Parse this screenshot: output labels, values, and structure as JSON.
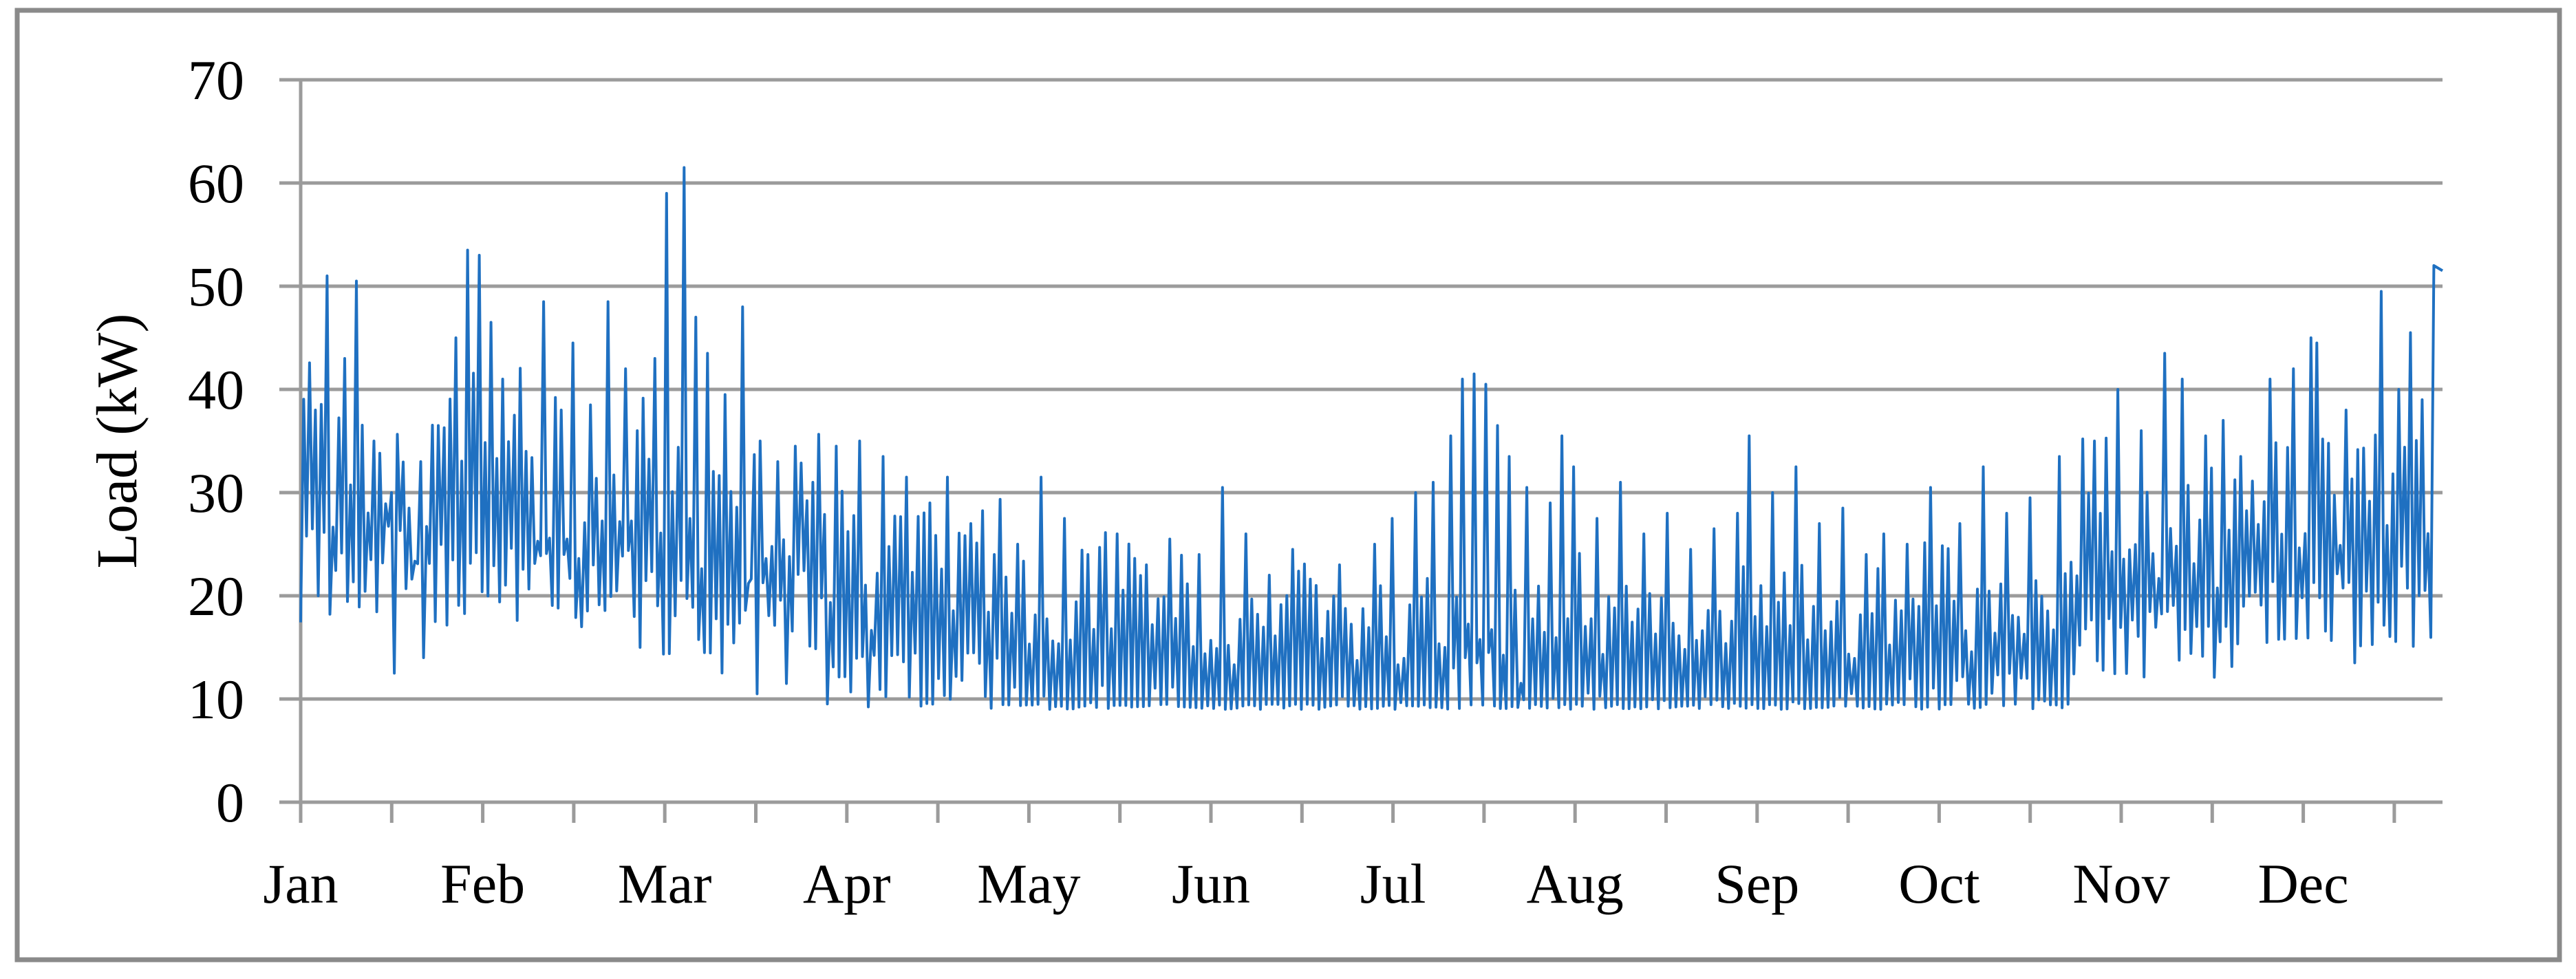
{
  "figure": {
    "border_color": "#8a8a8a",
    "background": "#ffffff"
  },
  "chart_data": {
    "type": "line",
    "title": "",
    "xlabel": "",
    "ylabel": "Load (kW)",
    "ylim": [
      0,
      70
    ],
    "yticks": [
      0,
      10,
      20,
      30,
      40,
      50,
      60,
      70
    ],
    "months": [
      "Jan",
      "Feb",
      "Mar",
      "Apr",
      "May",
      "Jun",
      "Jul",
      "Aug",
      "Sep",
      "Oct",
      "Nov",
      "Dec"
    ],
    "grid": "horizontal",
    "legend": "none",
    "axis_color": "#9b9b9b",
    "series": [
      {
        "name": "Load",
        "color": "#1f70c1",
        "unit": "kW",
        "floor_kw": 9,
        "end_value_kw": 51.5,
        "monthly_envelope": [
          {
            "month": "Jan",
            "day_start": 0,
            "day_end": 30,
            "typical_low": 22,
            "typical_daily_peak": 34,
            "low_jitter": 5,
            "peak_jitter": 8
          },
          {
            "month": "Feb",
            "day_start": 31,
            "day_end": 58,
            "typical_low": 21,
            "typical_daily_peak": 33,
            "low_jitter": 4,
            "peak_jitter": 8
          },
          {
            "month": "Mar",
            "day_start": 59,
            "day_end": 89,
            "typical_low": 17.5,
            "typical_daily_peak": 30,
            "low_jitter": 5,
            "peak_jitter": 7
          },
          {
            "month": "Apr",
            "day_start": 90,
            "day_end": 119,
            "typical_low": 12,
            "typical_daily_peak": 25,
            "low_jitter": 3,
            "peak_jitter": 5
          },
          {
            "month": "May",
            "day_start": 120,
            "day_end": 150,
            "typical_low": 10,
            "typical_daily_peak": 21,
            "low_jitter": 1.5,
            "peak_jitter": 4.5
          },
          {
            "month": "Jun",
            "day_start": 151,
            "day_end": 180,
            "typical_low": 9.7,
            "typical_daily_peak": 19,
            "low_jitter": 1,
            "peak_jitter": 4.5
          },
          {
            "month": "Jul",
            "day_start": 181,
            "day_end": 211,
            "typical_low": 9.7,
            "typical_daily_peak": 20,
            "low_jitter": 1,
            "peak_jitter": 5
          },
          {
            "month": "Aug",
            "day_start": 212,
            "day_end": 242,
            "typical_low": 9.7,
            "typical_daily_peak": 20,
            "low_jitter": 1,
            "peak_jitter": 4.5
          },
          {
            "month": "Sep",
            "day_start": 243,
            "day_end": 272,
            "typical_low": 9.7,
            "typical_daily_peak": 19,
            "low_jitter": 1,
            "peak_jitter": 4.5
          },
          {
            "month": "Oct",
            "day_start": 273,
            "day_end": 303,
            "typical_low": 10.5,
            "typical_daily_peak": 21,
            "low_jitter": 2,
            "peak_jitter": 4.5
          },
          {
            "month": "Nov",
            "day_start": 304,
            "day_end": 333,
            "typical_low": 16,
            "typical_daily_peak": 29,
            "low_jitter": 4,
            "peak_jitter": 6
          },
          {
            "month": "Dec",
            "day_start": 334,
            "day_end": 364,
            "typical_low": 19,
            "typical_daily_peak": 31,
            "low_jitter": 4,
            "peak_jitter": 7
          }
        ],
        "peak_events_day_kw": [
          [
            2,
            38
          ],
          [
            4,
            51
          ],
          [
            7,
            43
          ],
          [
            9,
            50.5
          ],
          [
            12,
            35
          ],
          [
            15,
            30
          ],
          [
            18,
            28.5
          ],
          [
            20,
            33
          ],
          [
            23,
            36.5
          ],
          [
            26,
            45
          ],
          [
            28,
            53.5
          ],
          [
            30,
            53
          ],
          [
            32,
            46.5
          ],
          [
            34,
            41
          ],
          [
            36,
            37.5
          ],
          [
            38,
            34
          ],
          [
            41,
            48.5
          ],
          [
            44,
            38
          ],
          [
            46,
            44.5
          ],
          [
            49,
            38.5
          ],
          [
            52,
            48.5
          ],
          [
            55,
            42
          ],
          [
            57,
            36
          ],
          [
            60,
            43
          ],
          [
            62,
            59
          ],
          [
            65,
            61.5
          ],
          [
            67,
            47
          ],
          [
            69,
            43.5
          ],
          [
            72,
            39.5
          ],
          [
            75,
            48
          ],
          [
            78,
            35
          ],
          [
            81,
            33
          ],
          [
            84,
            34.5
          ],
          [
            87,
            31
          ],
          [
            91,
            34.5
          ],
          [
            95,
            35
          ],
          [
            99,
            33.5
          ],
          [
            103,
            31.5
          ],
          [
            107,
            29
          ],
          [
            110,
            31.5
          ],
          [
            114,
            27
          ],
          [
            118,
            24
          ],
          [
            122,
            25
          ],
          [
            126,
            31.5
          ],
          [
            130,
            27.5
          ],
          [
            134,
            24
          ],
          [
            139,
            26
          ],
          [
            144,
            23
          ],
          [
            148,
            25.5
          ],
          [
            153,
            24
          ],
          [
            157,
            30.5
          ],
          [
            161,
            26
          ],
          [
            165,
            22
          ],
          [
            169,
            24.5
          ],
          [
            173,
            21
          ],
          [
            177,
            23
          ],
          [
            183,
            25
          ],
          [
            186,
            27.5
          ],
          [
            190,
            30
          ],
          [
            193,
            31
          ],
          [
            196,
            35.5
          ],
          [
            198,
            41
          ],
          [
            200,
            41.5
          ],
          [
            202,
            40.5
          ],
          [
            204,
            36.5
          ],
          [
            206,
            33.5
          ],
          [
            209,
            30.5
          ],
          [
            213,
            29
          ],
          [
            215,
            35.5
          ],
          [
            217,
            32.5
          ],
          [
            221,
            27.5
          ],
          [
            225,
            31
          ],
          [
            229,
            26
          ],
          [
            233,
            28
          ],
          [
            237,
            24.5
          ],
          [
            241,
            26.5
          ],
          [
            245,
            28
          ],
          [
            247,
            35.5
          ],
          [
            251,
            30
          ],
          [
            255,
            32.5
          ],
          [
            259,
            27
          ],
          [
            263,
            28.5
          ],
          [
            267,
            24
          ],
          [
            270,
            26
          ],
          [
            274,
            25
          ],
          [
            278,
            30.5
          ],
          [
            283,
            27
          ],
          [
            287,
            32.5
          ],
          [
            291,
            28
          ],
          [
            295,
            29.5
          ],
          [
            300,
            33.5
          ],
          [
            306,
            35
          ],
          [
            310,
            40
          ],
          [
            314,
            36
          ],
          [
            318,
            43.5
          ],
          [
            321,
            41
          ],
          [
            325,
            35.5
          ],
          [
            328,
            37
          ],
          [
            331,
            33.5
          ],
          [
            336,
            41
          ],
          [
            340,
            42
          ],
          [
            343,
            45
          ],
          [
            344,
            44.5
          ],
          [
            349,
            38
          ],
          [
            355,
            49.5
          ],
          [
            358,
            40
          ],
          [
            360,
            45.5
          ],
          [
            362,
            39
          ],
          [
            364,
            52
          ]
        ],
        "dip_events_day_kw": [
          [
            16,
            12.5
          ],
          [
            21,
            14
          ],
          [
            48,
            17
          ],
          [
            58,
            15
          ],
          [
            78,
            10.5
          ],
          [
            83,
            11.5
          ],
          [
            108,
            9.5
          ],
          [
            197,
            13
          ],
          [
            199,
            14
          ],
          [
            201,
            13.5
          ],
          [
            203,
            14.5
          ],
          [
            340,
            20
          ],
          [
            351,
            13.5
          ]
        ]
      }
    ]
  }
}
